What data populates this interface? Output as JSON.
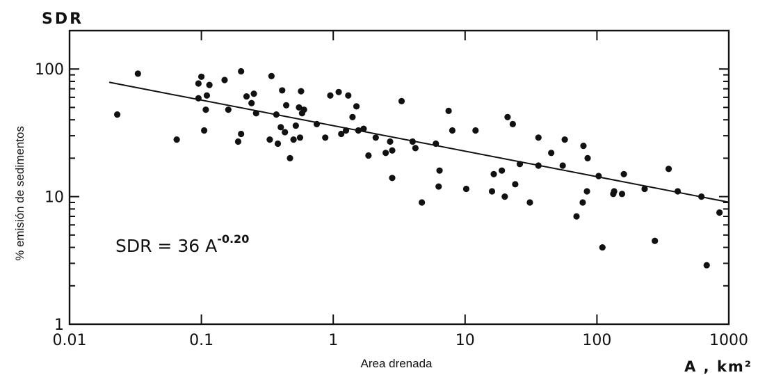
{
  "chart_data": {
    "type": "scatter",
    "title": "",
    "top_label": "SDR",
    "xlabel": "Area drenada",
    "xunit": "A , km²",
    "ylabel": "% emisión de sedimentos",
    "xscale": "log",
    "yscale": "log",
    "xlim": [
      0.01,
      1000
    ],
    "ylim": [
      1,
      200
    ],
    "x_ticks": [
      "0.01",
      "0.1",
      "1",
      "10",
      "100",
      "1000"
    ],
    "y_ticks": [
      "1",
      "10",
      "100"
    ],
    "equation": {
      "base": "SDR = 36 A",
      "exponent": "-0.20"
    },
    "fit": {
      "coef": 36,
      "exp": -0.2,
      "x_range": [
        0.02,
        1000
      ]
    },
    "points": [
      [
        0.023,
        44
      ],
      [
        0.033,
        92
      ],
      [
        0.065,
        28
      ],
      [
        0.095,
        77
      ],
      [
        0.095,
        59
      ],
      [
        0.1,
        87
      ],
      [
        0.105,
        33
      ],
      [
        0.108,
        48
      ],
      [
        0.11,
        62
      ],
      [
        0.115,
        75
      ],
      [
        0.15,
        82
      ],
      [
        0.16,
        48
      ],
      [
        0.19,
        27
      ],
      [
        0.2,
        31
      ],
      [
        0.2,
        96
      ],
      [
        0.22,
        61
      ],
      [
        0.24,
        54
      ],
      [
        0.25,
        64
      ],
      [
        0.26,
        45
      ],
      [
        0.33,
        28
      ],
      [
        0.34,
        88
      ],
      [
        0.37,
        44
      ],
      [
        0.38,
        26
      ],
      [
        0.4,
        35
      ],
      [
        0.41,
        68
      ],
      [
        0.43,
        32
      ],
      [
        0.44,
        52
      ],
      [
        0.47,
        20
      ],
      [
        0.5,
        28
      ],
      [
        0.52,
        36
      ],
      [
        0.55,
        50
      ],
      [
        0.56,
        29
      ],
      [
        0.57,
        67
      ],
      [
        0.58,
        45
      ],
      [
        0.6,
        48
      ],
      [
        0.75,
        37
      ],
      [
        0.87,
        29
      ],
      [
        0.95,
        62
      ],
      [
        1.1,
        66
      ],
      [
        1.15,
        31
      ],
      [
        1.25,
        33
      ],
      [
        1.3,
        62
      ],
      [
        1.4,
        42
      ],
      [
        1.5,
        51
      ],
      [
        1.55,
        33
      ],
      [
        1.7,
        34
      ],
      [
        1.85,
        21
      ],
      [
        2.1,
        29
      ],
      [
        2.5,
        22
      ],
      [
        2.7,
        27
      ],
      [
        2.8,
        23
      ],
      [
        2.8,
        14
      ],
      [
        3.3,
        56
      ],
      [
        4.0,
        27
      ],
      [
        4.2,
        24
      ],
      [
        4.7,
        9
      ],
      [
        6.0,
        26
      ],
      [
        6.3,
        12
      ],
      [
        6.4,
        16
      ],
      [
        7.5,
        47
      ],
      [
        8.0,
        33
      ],
      [
        10.2,
        11.5
      ],
      [
        12,
        33
      ],
      [
        16,
        11
      ],
      [
        16.5,
        15
      ],
      [
        19,
        16
      ],
      [
        20,
        10
      ],
      [
        21,
        42
      ],
      [
        23,
        37
      ],
      [
        24,
        12.5
      ],
      [
        26,
        18
      ],
      [
        31,
        9
      ],
      [
        36,
        29
      ],
      [
        36,
        17.5
      ],
      [
        45,
        22
      ],
      [
        55,
        17.5
      ],
      [
        57,
        28
      ],
      [
        70,
        7
      ],
      [
        78,
        9
      ],
      [
        79,
        25
      ],
      [
        84,
        11
      ],
      [
        85,
        20
      ],
      [
        103,
        14.5
      ],
      [
        110,
        4
      ],
      [
        133,
        10.5
      ],
      [
        135,
        11
      ],
      [
        155,
        10.5
      ],
      [
        160,
        15
      ],
      [
        230,
        11.5
      ],
      [
        275,
        4.5
      ],
      [
        350,
        16.5
      ],
      [
        410,
        11
      ],
      [
        620,
        10
      ],
      [
        680,
        2.9
      ],
      [
        850,
        7.5
      ]
    ]
  }
}
